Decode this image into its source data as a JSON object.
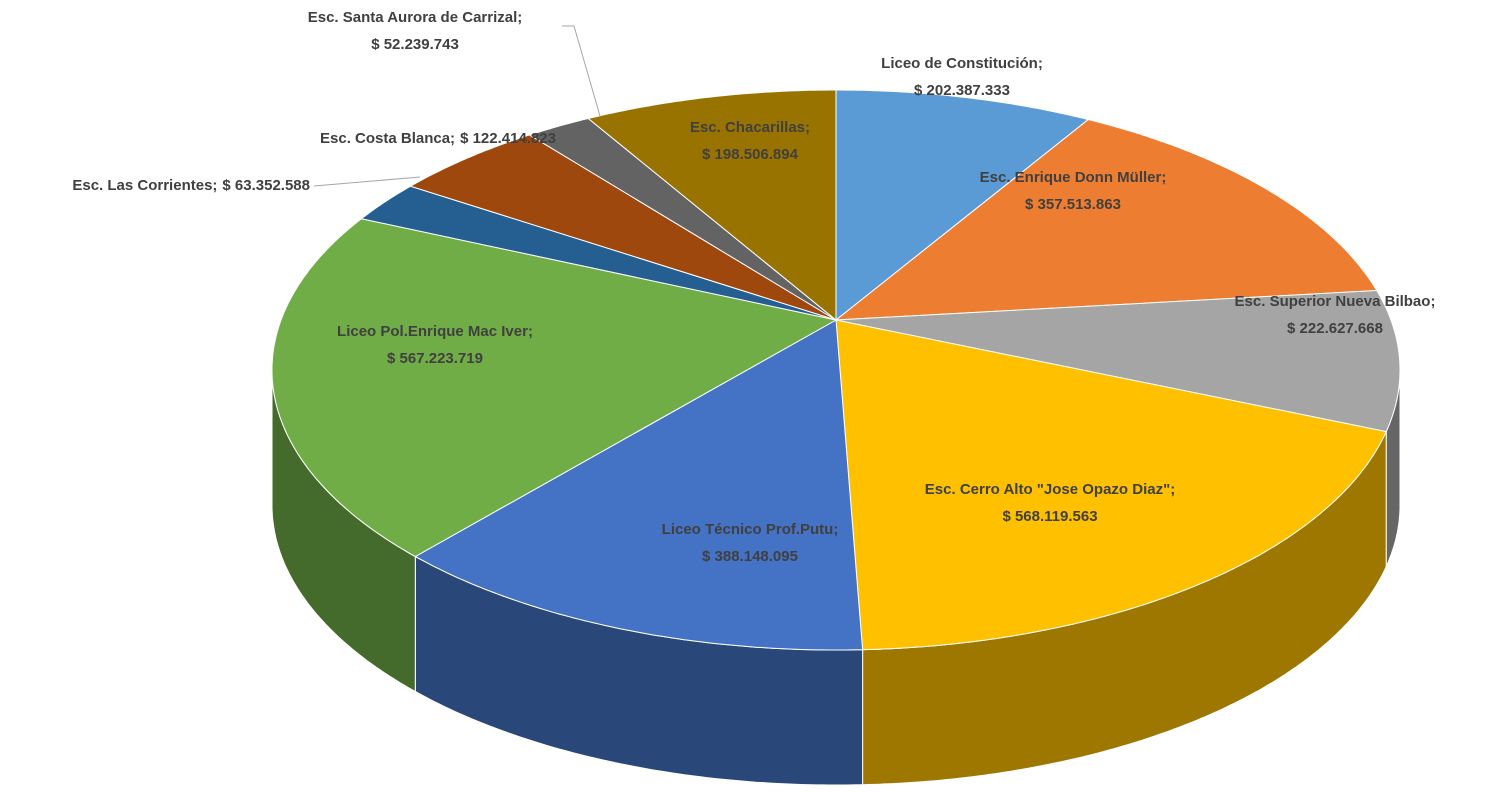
{
  "chart_data": {
    "type": "pie3d",
    "categories": [
      "Liceo de Constitución;",
      "Esc. Enrique Donn Müller;",
      "Esc. Superior Nueva Bilbao;",
      "Esc. Cerro Alto \"Jose Opazo Diaz\";",
      "Liceo Técnico Prof.Putu;",
      "Liceo Pol.Enrique Mac Iver;",
      "Esc. Las Corrientes;",
      "Esc. Costa Blanca;",
      "Esc. Santa Aurora de Carrizal;",
      "Esc. Chacarillas;"
    ],
    "values": [
      202387333,
      357513863,
      222627668,
      568119563,
      388148095,
      567223719,
      63352588,
      122414823,
      52239743,
      198506894
    ],
    "value_labels": [
      "$ 202.387.333",
      "$ 357.513.863",
      "$ 222.627.668",
      "$ 568.119.563",
      "$ 388.148.095",
      "$ 567.223.719",
      "$ 63.352.588",
      "$ 122.414.823",
      "$ 52.239.743",
      "$ 198.506.894"
    ],
    "colors": [
      "#5b9bd5",
      "#ed7d31",
      "#a5a5a5",
      "#ffc000",
      "#4472c4",
      "#70ad47",
      "#255e91",
      "#9e480e",
      "#636363",
      "#997300"
    ]
  }
}
